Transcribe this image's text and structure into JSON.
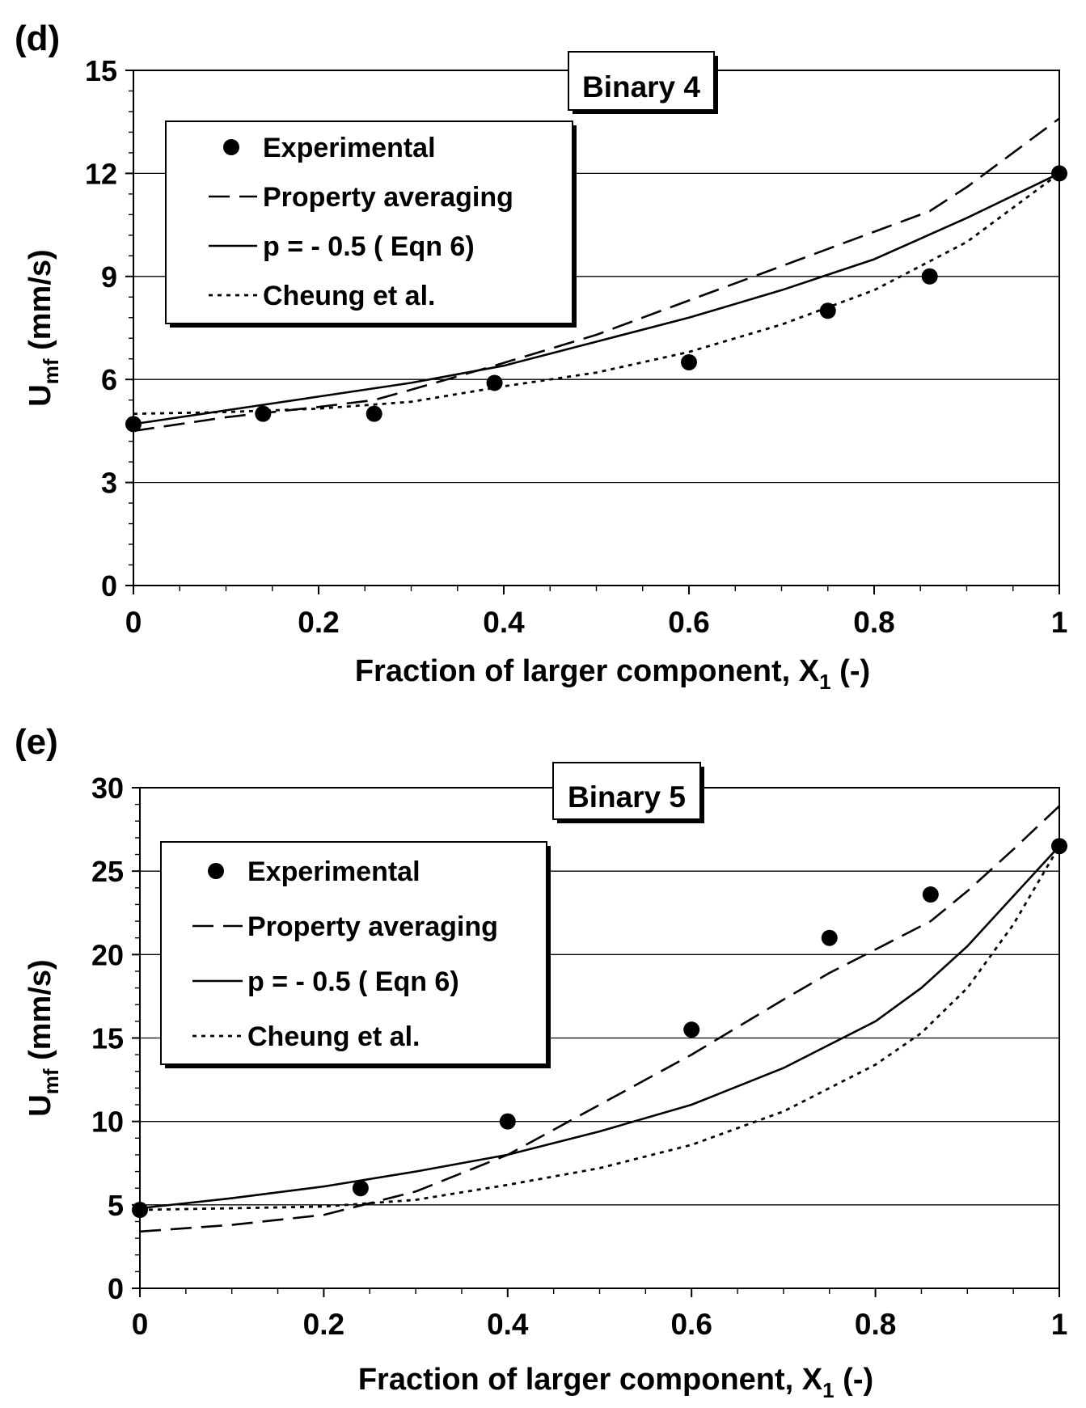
{
  "chart_data": [
    {
      "panel": "(d)",
      "type": "line",
      "title": "Binary 4",
      "xlabel": "Fraction of larger component, X",
      "xlabel_sub": "1",
      "xlabel_unit": " (-)",
      "ylabel": "U",
      "ylabel_sub": "mf",
      "ylabel_unit": "  (mm/s)",
      "xlim": [
        0,
        1
      ],
      "ylim": [
        0,
        15
      ],
      "xticks": [
        0,
        0.2,
        0.4,
        0.6,
        0.8,
        1
      ],
      "xtick_labels": [
        "0",
        "0.2",
        "0.4",
        "0.6",
        "0.8",
        "1"
      ],
      "yticks": [
        0,
        3,
        6,
        9,
        12,
        15
      ],
      "ytick_labels": [
        "0",
        "3",
        "6",
        "9",
        "12",
        "15"
      ],
      "grid": "horizontal",
      "legend_position": "top-left",
      "series": [
        {
          "name": "Experimental",
          "style": "markers",
          "x": [
            0,
            0.14,
            0.26,
            0.39,
            0.6,
            0.75,
            0.86,
            1
          ],
          "y": [
            4.7,
            5.0,
            5.0,
            5.9,
            6.5,
            8.0,
            9.0,
            12.0
          ]
        },
        {
          "name": "Property averaging",
          "style": "dashed",
          "x": [
            0,
            0.1,
            0.2,
            0.26,
            0.3,
            0.39,
            0.5,
            0.6,
            0.7,
            0.75,
            0.8,
            0.86,
            0.9,
            0.95,
            1
          ],
          "y": [
            4.5,
            4.9,
            5.2,
            5.4,
            5.7,
            6.4,
            7.3,
            8.3,
            9.3,
            9.8,
            10.3,
            10.9,
            11.6,
            12.6,
            13.6
          ]
        },
        {
          "name": "p = - 0.5 ( Eqn 6)",
          "style": "solid",
          "x": [
            0,
            0.1,
            0.2,
            0.3,
            0.4,
            0.5,
            0.6,
            0.7,
            0.8,
            0.9,
            1
          ],
          "y": [
            4.7,
            5.1,
            5.5,
            5.9,
            6.4,
            7.1,
            7.8,
            8.6,
            9.5,
            10.7,
            12.0
          ]
        },
        {
          "name": "Cheung et al.",
          "style": "dotted",
          "x": [
            0,
            0.1,
            0.2,
            0.3,
            0.4,
            0.5,
            0.6,
            0.7,
            0.8,
            0.9,
            1
          ],
          "y": [
            5.0,
            5.05,
            5.15,
            5.35,
            5.8,
            6.2,
            6.8,
            7.6,
            8.6,
            10.0,
            12.0
          ]
        }
      ]
    },
    {
      "panel": "(e)",
      "type": "line",
      "title": "Binary 5",
      "xlabel": "Fraction of larger component, X",
      "xlabel_sub": "1",
      "xlabel_unit": " (-)",
      "ylabel": "U",
      "ylabel_sub": "mf",
      "ylabel_unit": "  (mm/s)",
      "xlim": [
        0,
        1
      ],
      "ylim": [
        0,
        30
      ],
      "xticks": [
        0,
        0.2,
        0.4,
        0.6,
        0.8,
        1
      ],
      "xtick_labels": [
        "0",
        "0.2",
        "0.4",
        "0.6",
        "0.8",
        "1"
      ],
      "yticks": [
        0,
        5,
        10,
        15,
        20,
        25,
        30
      ],
      "ytick_labels": [
        "0",
        "5",
        "10",
        "15",
        "20",
        "25",
        "30"
      ],
      "grid": "horizontal",
      "legend_position": "top-left",
      "series": [
        {
          "name": "Experimental",
          "style": "markers",
          "x": [
            0,
            0.24,
            0.4,
            0.6,
            0.75,
            0.86,
            1
          ],
          "y": [
            4.7,
            6.0,
            10.0,
            15.5,
            21.0,
            23.6,
            26.5
          ]
        },
        {
          "name": "Property averaging",
          "style": "dashed",
          "x": [
            0,
            0.1,
            0.2,
            0.3,
            0.4,
            0.5,
            0.6,
            0.7,
            0.75,
            0.8,
            0.86,
            0.9,
            0.95,
            1
          ],
          "y": [
            3.4,
            3.8,
            4.4,
            5.8,
            8.0,
            11.0,
            14.0,
            17.3,
            18.9,
            20.3,
            22.0,
            23.8,
            26.3,
            28.9
          ]
        },
        {
          "name": "p = - 0.5 ( Eqn 6)",
          "style": "solid",
          "x": [
            0,
            0.1,
            0.2,
            0.3,
            0.4,
            0.5,
            0.6,
            0.7,
            0.8,
            0.85,
            0.9,
            0.95,
            1
          ],
          "y": [
            4.8,
            5.4,
            6.1,
            7.0,
            8.0,
            9.4,
            11.0,
            13.2,
            16.0,
            18.0,
            20.5,
            23.5,
            26.5
          ]
        },
        {
          "name": "Cheung et al.",
          "style": "dotted",
          "x": [
            0,
            0.1,
            0.2,
            0.3,
            0.4,
            0.5,
            0.6,
            0.7,
            0.8,
            0.85,
            0.9,
            0.95,
            1
          ],
          "y": [
            4.7,
            4.8,
            4.9,
            5.3,
            6.2,
            7.2,
            8.6,
            10.6,
            13.4,
            15.3,
            18.0,
            21.8,
            26.5
          ]
        }
      ]
    }
  ]
}
